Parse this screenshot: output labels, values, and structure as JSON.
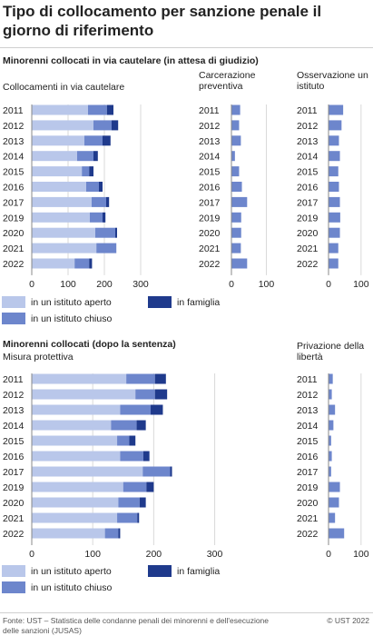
{
  "title": "Tipo di collocamento per sanzione penale il giorno di riferimento",
  "source": "Fonte: UST – Statistica delle condanne penali dei minorenni e dell'esecuzione delle sanzioni (JUSAS)",
  "copyright": "© UST 2022",
  "colors": {
    "aperto": "#b9c7ea",
    "chiuso": "#6d86cc",
    "famiglia": "#1f3a8c",
    "grid": "#d9d9d9"
  },
  "chart_data": [
    {
      "type": "bar",
      "orientation": "horizontal",
      "stacked": true,
      "section_title": "Minorenni collocati in via cautelare (in attesa di giudizio)",
      "title": "Collocamenti in via cautelare",
      "categories": [
        "2011",
        "2012",
        "2013",
        "2014",
        "2015",
        "2016",
        "2017",
        "2019",
        "2020",
        "2021",
        "2022"
      ],
      "series": [
        {
          "name": "in un istituto aperto",
          "values": [
            155,
            170,
            145,
            125,
            138,
            150,
            165,
            160,
            175,
            178,
            118
          ]
        },
        {
          "name": "in un istituto chiuso",
          "values": [
            52,
            50,
            50,
            45,
            20,
            35,
            40,
            35,
            55,
            55,
            40
          ]
        },
        {
          "name": "in famiglia",
          "values": [
            18,
            18,
            22,
            12,
            12,
            10,
            8,
            8,
            5,
            0,
            8
          ]
        }
      ],
      "ticks": [
        0,
        100,
        200,
        300
      ],
      "xlim": [
        0,
        320
      ]
    },
    {
      "type": "bar",
      "orientation": "horizontal",
      "title": "Carcerazione preventiva",
      "categories": [
        "2011",
        "2012",
        "2013",
        "2014",
        "2015",
        "2016",
        "2017",
        "2019",
        "2020",
        "2021",
        "2022"
      ],
      "series": [
        {
          "name": "",
          "values": [
            25,
            22,
            27,
            10,
            22,
            30,
            45,
            28,
            28,
            27,
            45
          ]
        }
      ],
      "ticks": [
        0,
        100
      ],
      "xlim": [
        0,
        130
      ]
    },
    {
      "type": "bar",
      "orientation": "horizontal",
      "title": "Osservazione un istituto",
      "categories": [
        "2011",
        "2012",
        "2013",
        "2014",
        "2015",
        "2016",
        "2017",
        "2019",
        "2020",
        "2021",
        "2022"
      ],
      "series": [
        {
          "name": "",
          "values": [
            45,
            40,
            32,
            35,
            30,
            32,
            35,
            36,
            35,
            30,
            30
          ]
        }
      ],
      "ticks": [
        0,
        100
      ],
      "xlim": [
        0,
        120
      ]
    },
    {
      "type": "bar",
      "orientation": "horizontal",
      "stacked": true,
      "section_title": "Minorenni collocati (dopo la sentenza)",
      "title": "Misura protettiva",
      "categories": [
        "2011",
        "2012",
        "2013",
        "2014",
        "2015",
        "2016",
        "2017",
        "2019",
        "2020",
        "2021",
        "2022"
      ],
      "series": [
        {
          "name": "in un istituto aperto",
          "values": [
            155,
            170,
            145,
            130,
            140,
            145,
            182,
            150,
            142,
            140,
            120
          ]
        },
        {
          "name": "in un istituto chiuso",
          "values": [
            47,
            32,
            50,
            42,
            20,
            38,
            45,
            38,
            35,
            33,
            22
          ]
        },
        {
          "name": "in famiglia",
          "values": [
            18,
            20,
            20,
            15,
            10,
            10,
            3,
            12,
            10,
            3,
            3
          ]
        }
      ],
      "ticks": [
        0,
        100,
        200,
        300
      ],
      "xlim": [
        0,
        320
      ]
    },
    {
      "type": "bar",
      "orientation": "horizontal",
      "title": "Privazione della libertà",
      "categories": [
        "2011",
        "2012",
        "2013",
        "2014",
        "2015",
        "2016",
        "2017",
        "2019",
        "2020",
        "2021",
        "2022"
      ],
      "series": [
        {
          "name": "",
          "values": [
            13,
            10,
            20,
            15,
            8,
            10,
            8,
            35,
            32,
            20,
            48
          ]
        }
      ],
      "ticks": [
        0,
        100
      ],
      "xlim": [
        0,
        120
      ]
    }
  ],
  "legend": {
    "aperto": "in un istituto aperto",
    "chiuso": "in un istituto chiuso",
    "famiglia": "in famiglia"
  }
}
